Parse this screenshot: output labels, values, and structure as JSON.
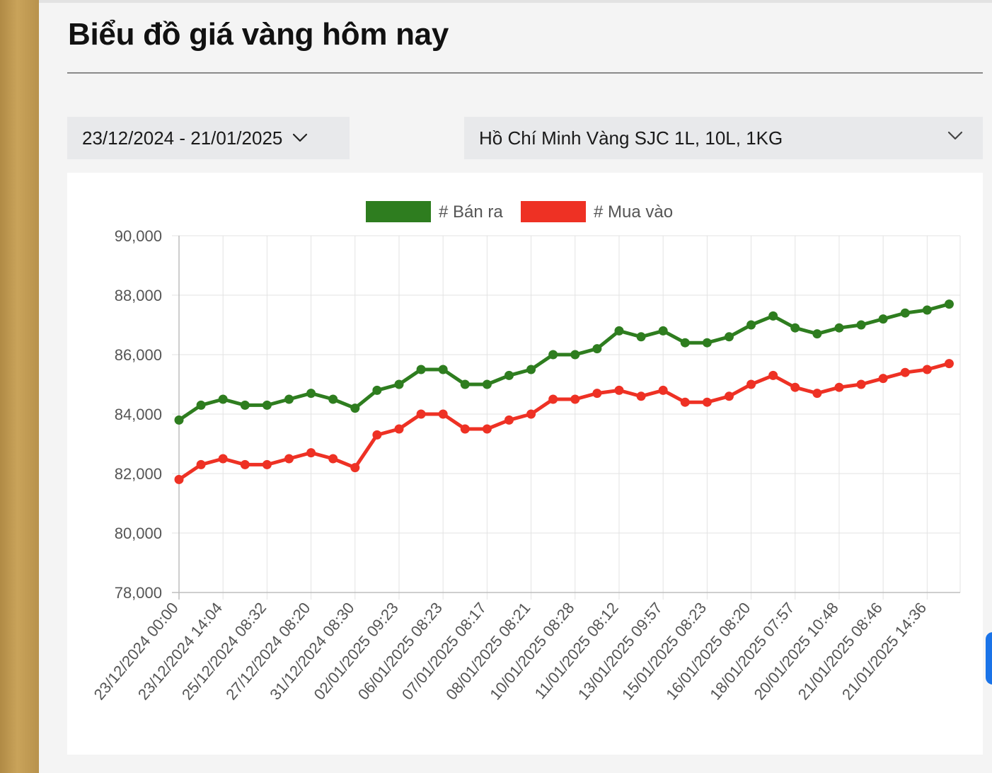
{
  "page": {
    "title": "Biểu đồ giá vàng hôm nay"
  },
  "filters": {
    "date_range": "23/12/2024 - 21/01/2025",
    "location_product": "Hồ Chí Minh Vàng SJC 1L, 10L, 1KG",
    "date_icon": "chevron-down-icon",
    "location_icon": "chevron-down-icon"
  },
  "colors": {
    "sell": "#2e7d1f",
    "buy": "#ee3124",
    "grid": "#e3e3e3",
    "axis": "#bdbdbd",
    "tick_text": "#555555",
    "gold_strip": "#c9a35a"
  },
  "chart_data": {
    "type": "line",
    "title": "",
    "xlabel": "",
    "ylabel": "",
    "ylim": [
      78000,
      90000
    ],
    "yticks": [
      90000,
      88000,
      86000,
      84000,
      82000,
      80000,
      78000
    ],
    "ytick_labels": [
      "90,000",
      "88,000",
      "86,000",
      "84,000",
      "82,000",
      "80,000",
      "78,000"
    ],
    "grid": true,
    "legend_position": "top-center",
    "x_point_count": 36,
    "x_tick_labels": [
      "23/12/2024 00:00",
      "23/12/2024 14:04",
      "25/12/2024 08:32",
      "27/12/2024 08:20",
      "31/12/2024 08:30",
      "02/01/2025 09:23",
      "06/01/2025 08:23",
      "07/01/2025 08:17",
      "08/01/2025 08:21",
      "10/01/2025 08:28",
      "11/01/2025 08:12",
      "13/01/2025 09:57",
      "15/01/2025 08:23",
      "16/01/2025 08:20",
      "18/01/2025 07:57",
      "20/01/2025 10:48",
      "21/01/2025 08:46",
      "21/01/2025 14:36"
    ],
    "series": [
      {
        "name": "# Bán ra",
        "color": "#2e7d1f",
        "values": [
          83800,
          84300,
          84500,
          84300,
          84300,
          84500,
          84700,
          84500,
          84200,
          84800,
          85000,
          85500,
          85500,
          85000,
          85000,
          85300,
          85500,
          86000,
          86000,
          86200,
          86800,
          86600,
          86800,
          86400,
          86400,
          86600,
          87000,
          87300,
          86900,
          86700,
          86900,
          87000,
          87200,
          87400,
          87500,
          87700
        ]
      },
      {
        "name": "# Mua vào",
        "color": "#ee3124",
        "values": [
          81800,
          82300,
          82500,
          82300,
          82300,
          82500,
          82700,
          82500,
          82200,
          83300,
          83500,
          84000,
          84000,
          83500,
          83500,
          83800,
          84000,
          84500,
          84500,
          84700,
          84800,
          84600,
          84800,
          84400,
          84400,
          84600,
          85000,
          85300,
          84900,
          84700,
          84900,
          85000,
          85200,
          85400,
          85500,
          85700
        ]
      }
    ]
  }
}
